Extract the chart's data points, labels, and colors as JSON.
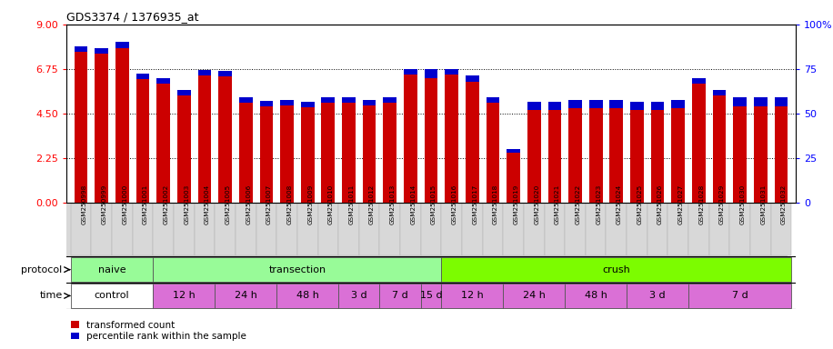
{
  "title": "GDS3374 / 1376935_at",
  "samples": [
    "GSM250998",
    "GSM250999",
    "GSM251000",
    "GSM251001",
    "GSM251002",
    "GSM251003",
    "GSM251004",
    "GSM251005",
    "GSM251006",
    "GSM251007",
    "GSM251008",
    "GSM251009",
    "GSM251010",
    "GSM251011",
    "GSM251012",
    "GSM251013",
    "GSM251014",
    "GSM251015",
    "GSM251016",
    "GSM251017",
    "GSM251018",
    "GSM251019",
    "GSM251020",
    "GSM251021",
    "GSM251022",
    "GSM251023",
    "GSM251024",
    "GSM251025",
    "GSM251026",
    "GSM251027",
    "GSM251028",
    "GSM251029",
    "GSM251030",
    "GSM251031",
    "GSM251032"
  ],
  "red_values": [
    7.9,
    7.8,
    8.1,
    6.5,
    6.3,
    5.7,
    6.7,
    6.65,
    5.3,
    5.15,
    5.2,
    5.1,
    5.3,
    5.3,
    5.2,
    5.3,
    6.75,
    6.75,
    6.75,
    6.4,
    5.3,
    2.7,
    5.1,
    5.1,
    5.2,
    5.2,
    5.2,
    5.1,
    5.1,
    5.2,
    6.3,
    5.7,
    5.3,
    5.3,
    5.3
  ],
  "blue_heights": [
    0.28,
    0.28,
    0.28,
    0.28,
    0.28,
    0.28,
    0.28,
    0.28,
    0.28,
    0.28,
    0.28,
    0.28,
    0.28,
    0.28,
    0.28,
    0.28,
    0.28,
    0.45,
    0.28,
    0.28,
    0.28,
    0.18,
    0.42,
    0.42,
    0.42,
    0.42,
    0.42,
    0.42,
    0.42,
    0.42,
    0.28,
    0.28,
    0.42,
    0.42,
    0.42
  ],
  "protocol_groups": [
    {
      "label": "naive",
      "start": 0,
      "end": 4,
      "color": "#98FB98"
    },
    {
      "label": "transection",
      "start": 4,
      "end": 18,
      "color": "#98FB98"
    },
    {
      "label": "crush",
      "start": 18,
      "end": 35,
      "color": "#7CFC00"
    }
  ],
  "time_groups": [
    {
      "label": "control",
      "start": 0,
      "end": 4,
      "color": "#ffffff"
    },
    {
      "label": "12 h",
      "start": 4,
      "end": 7,
      "color": "#DA70D6"
    },
    {
      "label": "24 h",
      "start": 7,
      "end": 10,
      "color": "#DA70D6"
    },
    {
      "label": "48 h",
      "start": 10,
      "end": 13,
      "color": "#DA70D6"
    },
    {
      "label": "3 d",
      "start": 13,
      "end": 15,
      "color": "#DA70D6"
    },
    {
      "label": "7 d",
      "start": 15,
      "end": 17,
      "color": "#DA70D6"
    },
    {
      "label": "15 d",
      "start": 17,
      "end": 18,
      "color": "#DA70D6"
    },
    {
      "label": "12 h",
      "start": 18,
      "end": 21,
      "color": "#DA70D6"
    },
    {
      "label": "24 h",
      "start": 21,
      "end": 24,
      "color": "#DA70D6"
    },
    {
      "label": "48 h",
      "start": 24,
      "end": 27,
      "color": "#DA70D6"
    },
    {
      "label": "3 d",
      "start": 27,
      "end": 30,
      "color": "#DA70D6"
    },
    {
      "label": "7 d",
      "start": 30,
      "end": 35,
      "color": "#DA70D6"
    }
  ],
  "protocol_label": "protocol",
  "time_label": "time",
  "yleft_max": 9,
  "yright_max": 100,
  "yticks_left": [
    0,
    2.25,
    4.5,
    6.75,
    9
  ],
  "yticks_right": [
    0,
    25,
    50,
    75,
    100
  ],
  "bar_color": "#cc0000",
  "blue_color": "#0000cc",
  "legend_red": "transformed count",
  "legend_blue": "percentile rank within the sample",
  "bar_width": 0.65
}
